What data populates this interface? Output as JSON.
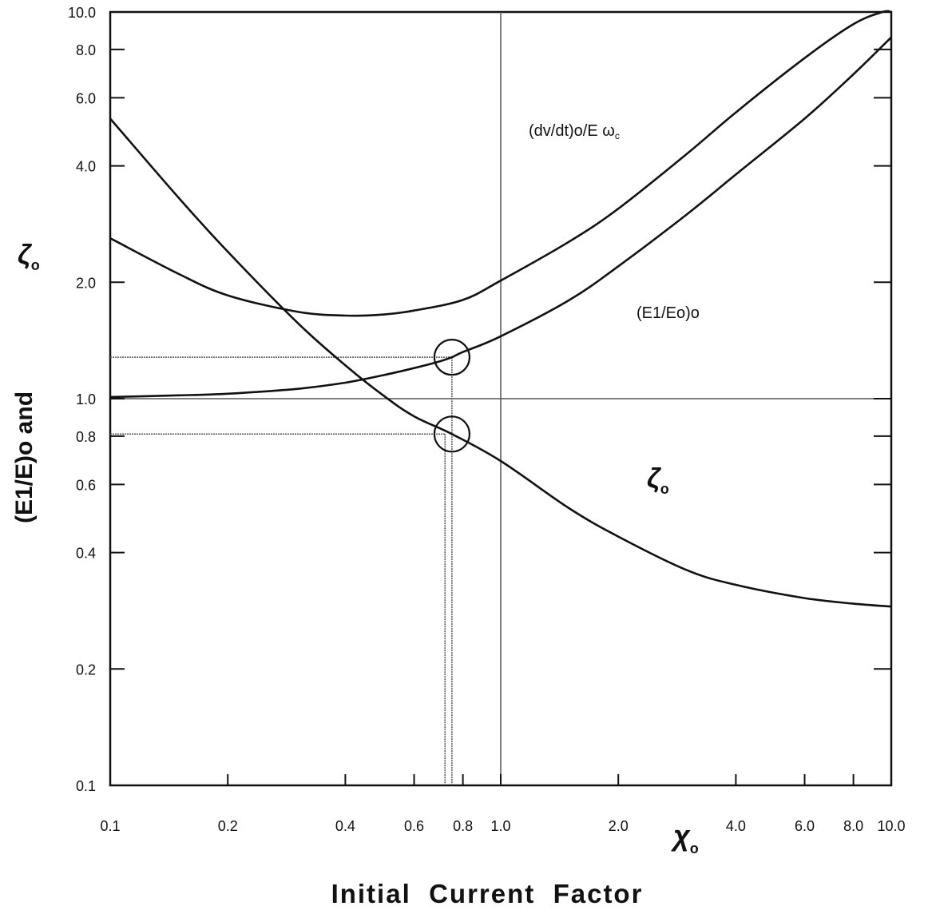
{
  "chart_data": {
    "type": "line",
    "xscale": "log",
    "yscale": "log",
    "xlim": [
      0.1,
      10.0
    ],
    "ylim": [
      0.1,
      10.0
    ],
    "grid": false,
    "x_tick_labels": [
      "0.1",
      "0.2",
      "0.4",
      "0.6",
      "0.8",
      "1.0",
      "2.0",
      "4.0",
      "6.0",
      "8.0",
      "10.0"
    ],
    "x_tick_values": [
      0.1,
      0.2,
      0.4,
      0.6,
      0.8,
      1.0,
      2.0,
      4.0,
      6.0,
      8.0,
      10.0
    ],
    "y_tick_labels": [
      "0.1",
      "0.2",
      "0.4",
      "0.6",
      "0.8",
      "1.0",
      "2.0",
      "4.0",
      "6.0",
      "8.0",
      "10.0"
    ],
    "y_tick_values": [
      0.1,
      0.2,
      0.4,
      0.6,
      0.8,
      1.0,
      2.0,
      4.0,
      6.0,
      8.0,
      10.0
    ],
    "ylabel": "(E1/E)o and",
    "ylabel_symbol": "ζ",
    "ylabel_symbol_sub": "o",
    "xlabel": "Initial  Current  Factor",
    "xlabel_symbol": "χ",
    "xlabel_symbol_sub": "o",
    "series": [
      {
        "name": "(dv/dt)o/E ω",
        "name_sub": "c",
        "x": [
          0.1,
          0.15,
          0.2,
          0.3,
          0.4,
          0.5,
          0.6,
          0.8,
          1.0,
          1.5,
          2.0,
          3.0,
          4.0,
          6.0,
          8.0,
          9.5,
          10.0
        ],
        "y": [
          2.6,
          2.1,
          1.85,
          1.68,
          1.64,
          1.65,
          1.69,
          1.8,
          2.02,
          2.55,
          3.1,
          4.3,
          5.5,
          7.6,
          9.3,
          10.0,
          10.0
        ]
      },
      {
        "name": "(E1/Eo)o",
        "x": [
          0.1,
          0.15,
          0.2,
          0.3,
          0.4,
          0.5,
          0.6,
          0.7,
          0.75,
          0.8,
          1.0,
          1.5,
          2.0,
          3.0,
          4.0,
          6.0,
          8.0,
          10.0
        ],
        "y": [
          1.01,
          1.02,
          1.03,
          1.06,
          1.1,
          1.15,
          1.2,
          1.25,
          1.28,
          1.32,
          1.45,
          1.8,
          2.2,
          3.0,
          3.8,
          5.3,
          6.9,
          8.6
        ]
      },
      {
        "name": "ζ",
        "name_sub": "o",
        "x": [
          0.1,
          0.15,
          0.2,
          0.3,
          0.4,
          0.5,
          0.6,
          0.75,
          1.0,
          1.5,
          2.0,
          3.0,
          4.0,
          6.0,
          8.0,
          10.0
        ],
        "y": [
          5.3,
          3.3,
          2.4,
          1.58,
          1.22,
          1.02,
          0.9,
          0.81,
          0.69,
          0.52,
          0.44,
          0.36,
          0.33,
          0.305,
          0.295,
          0.29
        ]
      }
    ],
    "annotations": [
      {
        "type": "hline",
        "y": 1.0
      },
      {
        "type": "vline",
        "x": 1.0
      },
      {
        "type": "circle",
        "x": 0.75,
        "y": 1.28
      },
      {
        "type": "circle",
        "x": 0.75,
        "y": 0.81
      },
      {
        "type": "guide",
        "x": 0.75,
        "y": 1.28
      },
      {
        "type": "guide",
        "x": 0.72,
        "y": 0.81
      }
    ]
  }
}
